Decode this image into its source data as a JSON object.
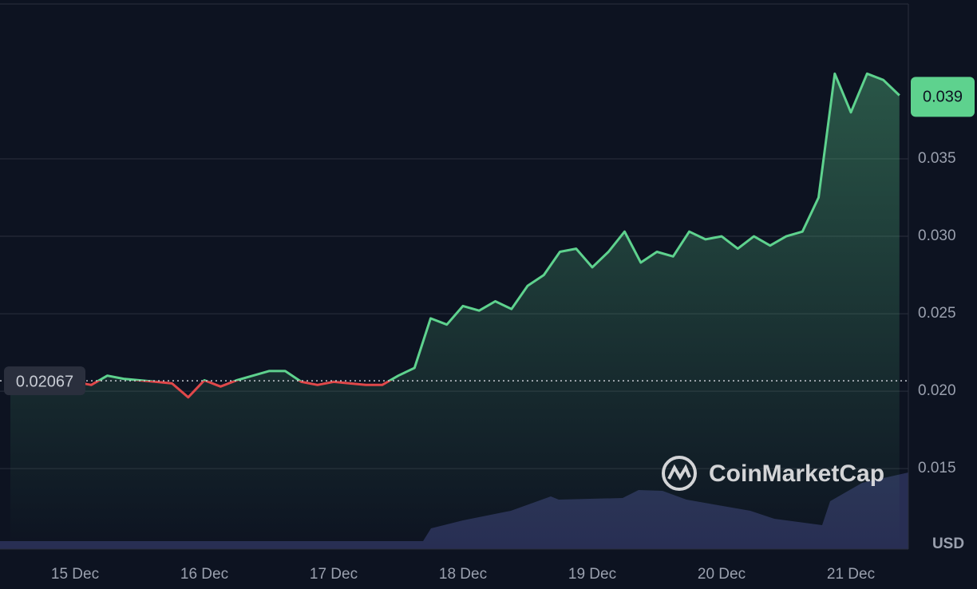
{
  "chart_data": {
    "type": "line",
    "categories": [
      null,
      null,
      null,
      null,
      "15 Dec",
      null,
      null,
      null,
      null,
      null,
      null,
      null,
      "16 Dec",
      null,
      null,
      null,
      null,
      null,
      null,
      null,
      "17 Dec",
      null,
      null,
      null,
      null,
      null,
      null,
      null,
      "18 Dec",
      null,
      null,
      null,
      null,
      null,
      null,
      null,
      "19 Dec",
      null,
      null,
      null,
      null,
      null,
      null,
      null,
      "20 Dec",
      null,
      null,
      null,
      null,
      null,
      null,
      null,
      "21 Dec",
      null,
      null,
      null
    ],
    "series": [
      {
        "color": "#5ed28e",
        "below_color": "#e0484a",
        "values": [
          0.0207,
          0.0208,
          0.0206,
          0.0206,
          0.0206,
          0.0204,
          0.021,
          0.0208,
          0.0207,
          0.0206,
          0.0205,
          0.0196,
          0.0207,
          0.0203,
          0.0207,
          0.021,
          0.0213,
          0.0213,
          0.0206,
          0.0204,
          0.0206,
          0.0205,
          0.0204,
          0.0204,
          0.021,
          0.0215,
          0.0247,
          0.0243,
          0.0255,
          0.0252,
          0.0258,
          0.0253,
          0.0268,
          0.0275,
          0.029,
          0.0292,
          0.028,
          0.029,
          0.0303,
          0.0283,
          0.029,
          0.0287,
          0.0303,
          0.0298,
          0.03,
          0.0292,
          0.03,
          0.0294,
          0.03,
          0.0303,
          0.0325,
          0.0405,
          0.038,
          0.0405,
          0.0401,
          0.0391
        ]
      }
    ],
    "baseline": 0.02067,
    "current_price": 0.039,
    "ylim": [
      0.0098,
      0.045
    ],
    "yticks": [
      0.015,
      {
        "value": 0.02,
        "label": "0.020"
      },
      0.025,
      {
        "value": 0.03,
        "label": "0.030"
      },
      0.035
    ],
    "grid": true,
    "currency": "USD",
    "watermark": "CoinMarketCap"
  }
}
